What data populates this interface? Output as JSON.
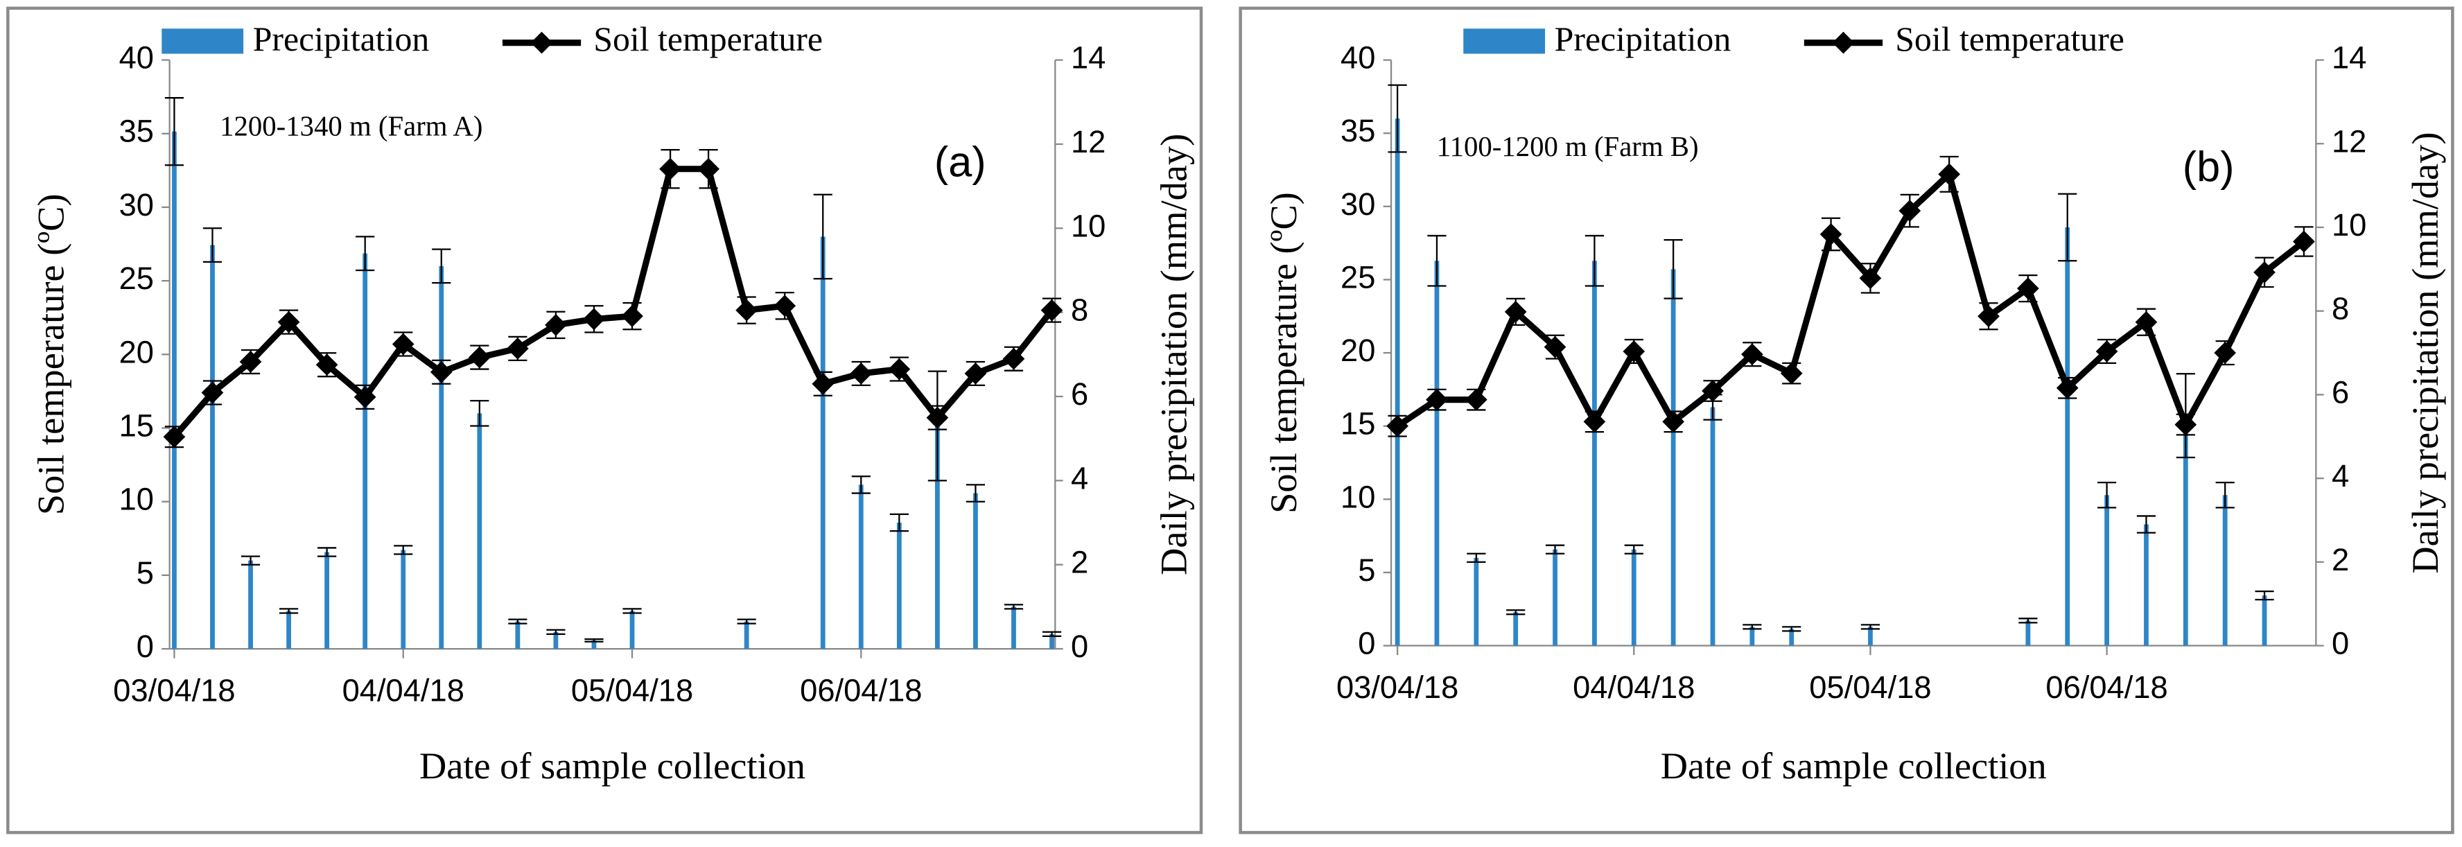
{
  "chart_data": [
    {
      "type": "combo",
      "annotation": "1200-1340 m (Farm A)",
      "panel_label": "(a)",
      "x_label": "Date of sample collection",
      "y_label": "Soil temperature (ºC)",
      "y2_label": "Daily precipitation (mm/day)",
      "categories": [
        "03/04/18",
        null,
        null,
        null,
        null,
        null,
        "04/04/18",
        null,
        null,
        null,
        null,
        null,
        "05/04/18",
        null,
        null,
        null,
        null,
        null,
        "06/04/18",
        null,
        null,
        null,
        null,
        null
      ],
      "ylim": [
        0,
        40
      ],
      "yticks": [
        0,
        5,
        10,
        15,
        20,
        25,
        30,
        35,
        40
      ],
      "y2lim": [
        0,
        14
      ],
      "y2ticks": [
        0,
        2,
        4,
        6,
        8,
        10,
        12,
        14
      ],
      "legend": "top",
      "series": [
        {
          "name": "Precipitation",
          "type": "bar",
          "axis": "y2",
          "color": "#2e86c8",
          "values": [
            12.3,
            9.6,
            2.1,
            0.9,
            2.3,
            9.4,
            2.35,
            9.1,
            5.6,
            0.65,
            0.4,
            0.2,
            0.9,
            0,
            0,
            0.65,
            0,
            9.8,
            3.9,
            3.0,
            5.3,
            3.7,
            1.0,
            0.35
          ],
          "errors": [
            0.8,
            0.4,
            0.1,
            0.05,
            0.1,
            0.4,
            0.1,
            0.4,
            0.3,
            0.05,
            0.05,
            0.03,
            0.05,
            0,
            0,
            0.05,
            0,
            1.0,
            0.2,
            0.2,
            1.3,
            0.2,
            0.05,
            0.05
          ]
        },
        {
          "name": "Soil temperature",
          "type": "line",
          "color": "#000000",
          "values": [
            14.4,
            17.4,
            19.5,
            22.2,
            19.3,
            17.1,
            20.7,
            18.8,
            19.8,
            20.4,
            22.0,
            22.4,
            22.6,
            32.6,
            32.6,
            23.0,
            23.3,
            18.0,
            18.7,
            19.0,
            15.7,
            18.7,
            19.7,
            23.0
          ],
          "errors": [
            0.7,
            0.8,
            0.8,
            0.8,
            0.8,
            0.8,
            0.8,
            0.8,
            0.8,
            0.8,
            0.9,
            0.9,
            0.9,
            1.3,
            1.3,
            0.9,
            0.9,
            0.8,
            0.8,
            0.8,
            0.8,
            0.8,
            0.8,
            0.8
          ]
        }
      ]
    },
    {
      "type": "combo",
      "annotation": "1100-1200 m (Farm B)",
      "panel_label": "(b)",
      "x_label": "Date of sample collection",
      "y_label": "Soil temperature (ºC)",
      "y2_label": "Daily precipitation (mm/day)",
      "categories": [
        "03/04/18",
        null,
        null,
        null,
        null,
        null,
        "04/04/18",
        null,
        null,
        null,
        null,
        null,
        "05/04/18",
        null,
        null,
        null,
        null,
        null,
        "06/04/18",
        null,
        null,
        null,
        null,
        null
      ],
      "ylim": [
        0,
        40
      ],
      "yticks": [
        0,
        5,
        10,
        15,
        20,
        25,
        30,
        35,
        40
      ],
      "y2lim": [
        0,
        14
      ],
      "y2ticks": [
        0,
        2,
        4,
        6,
        8,
        10,
        12,
        14
      ],
      "legend": "top",
      "series": [
        {
          "name": "Precipitation",
          "type": "bar",
          "axis": "y2",
          "color": "#2e86c8",
          "values": [
            12.6,
            9.2,
            2.1,
            0.8,
            2.3,
            9.2,
            2.3,
            9.0,
            5.7,
            0.45,
            0.4,
            0,
            0.45,
            0,
            0,
            0,
            0.6,
            10.0,
            3.6,
            2.9,
            5.5,
            3.6,
            1.2,
            0
          ],
          "errors": [
            0.8,
            0.6,
            0.1,
            0.05,
            0.1,
            0.6,
            0.1,
            0.7,
            0.3,
            0.05,
            0.05,
            0,
            0.05,
            0,
            0,
            0,
            0.05,
            0.8,
            0.3,
            0.2,
            1.0,
            0.3,
            0.1,
            0
          ]
        },
        {
          "name": "Soil temperature",
          "type": "line",
          "color": "#000000",
          "values": [
            15.0,
            16.8,
            16.8,
            22.8,
            20.4,
            15.3,
            20.1,
            15.3,
            17.4,
            19.9,
            18.6,
            28.1,
            25.1,
            29.7,
            32.2,
            22.5,
            24.4,
            17.6,
            20.1,
            22.1,
            15.1,
            20.0,
            25.5,
            27.6
          ],
          "errors": [
            0.7,
            0.7,
            0.7,
            0.9,
            0.8,
            0.7,
            0.8,
            0.7,
            0.7,
            0.8,
            0.7,
            1.1,
            1.0,
            1.1,
            1.2,
            0.9,
            0.9,
            0.7,
            0.8,
            0.9,
            0.7,
            0.8,
            1.0,
            1.0
          ]
        }
      ]
    }
  ]
}
